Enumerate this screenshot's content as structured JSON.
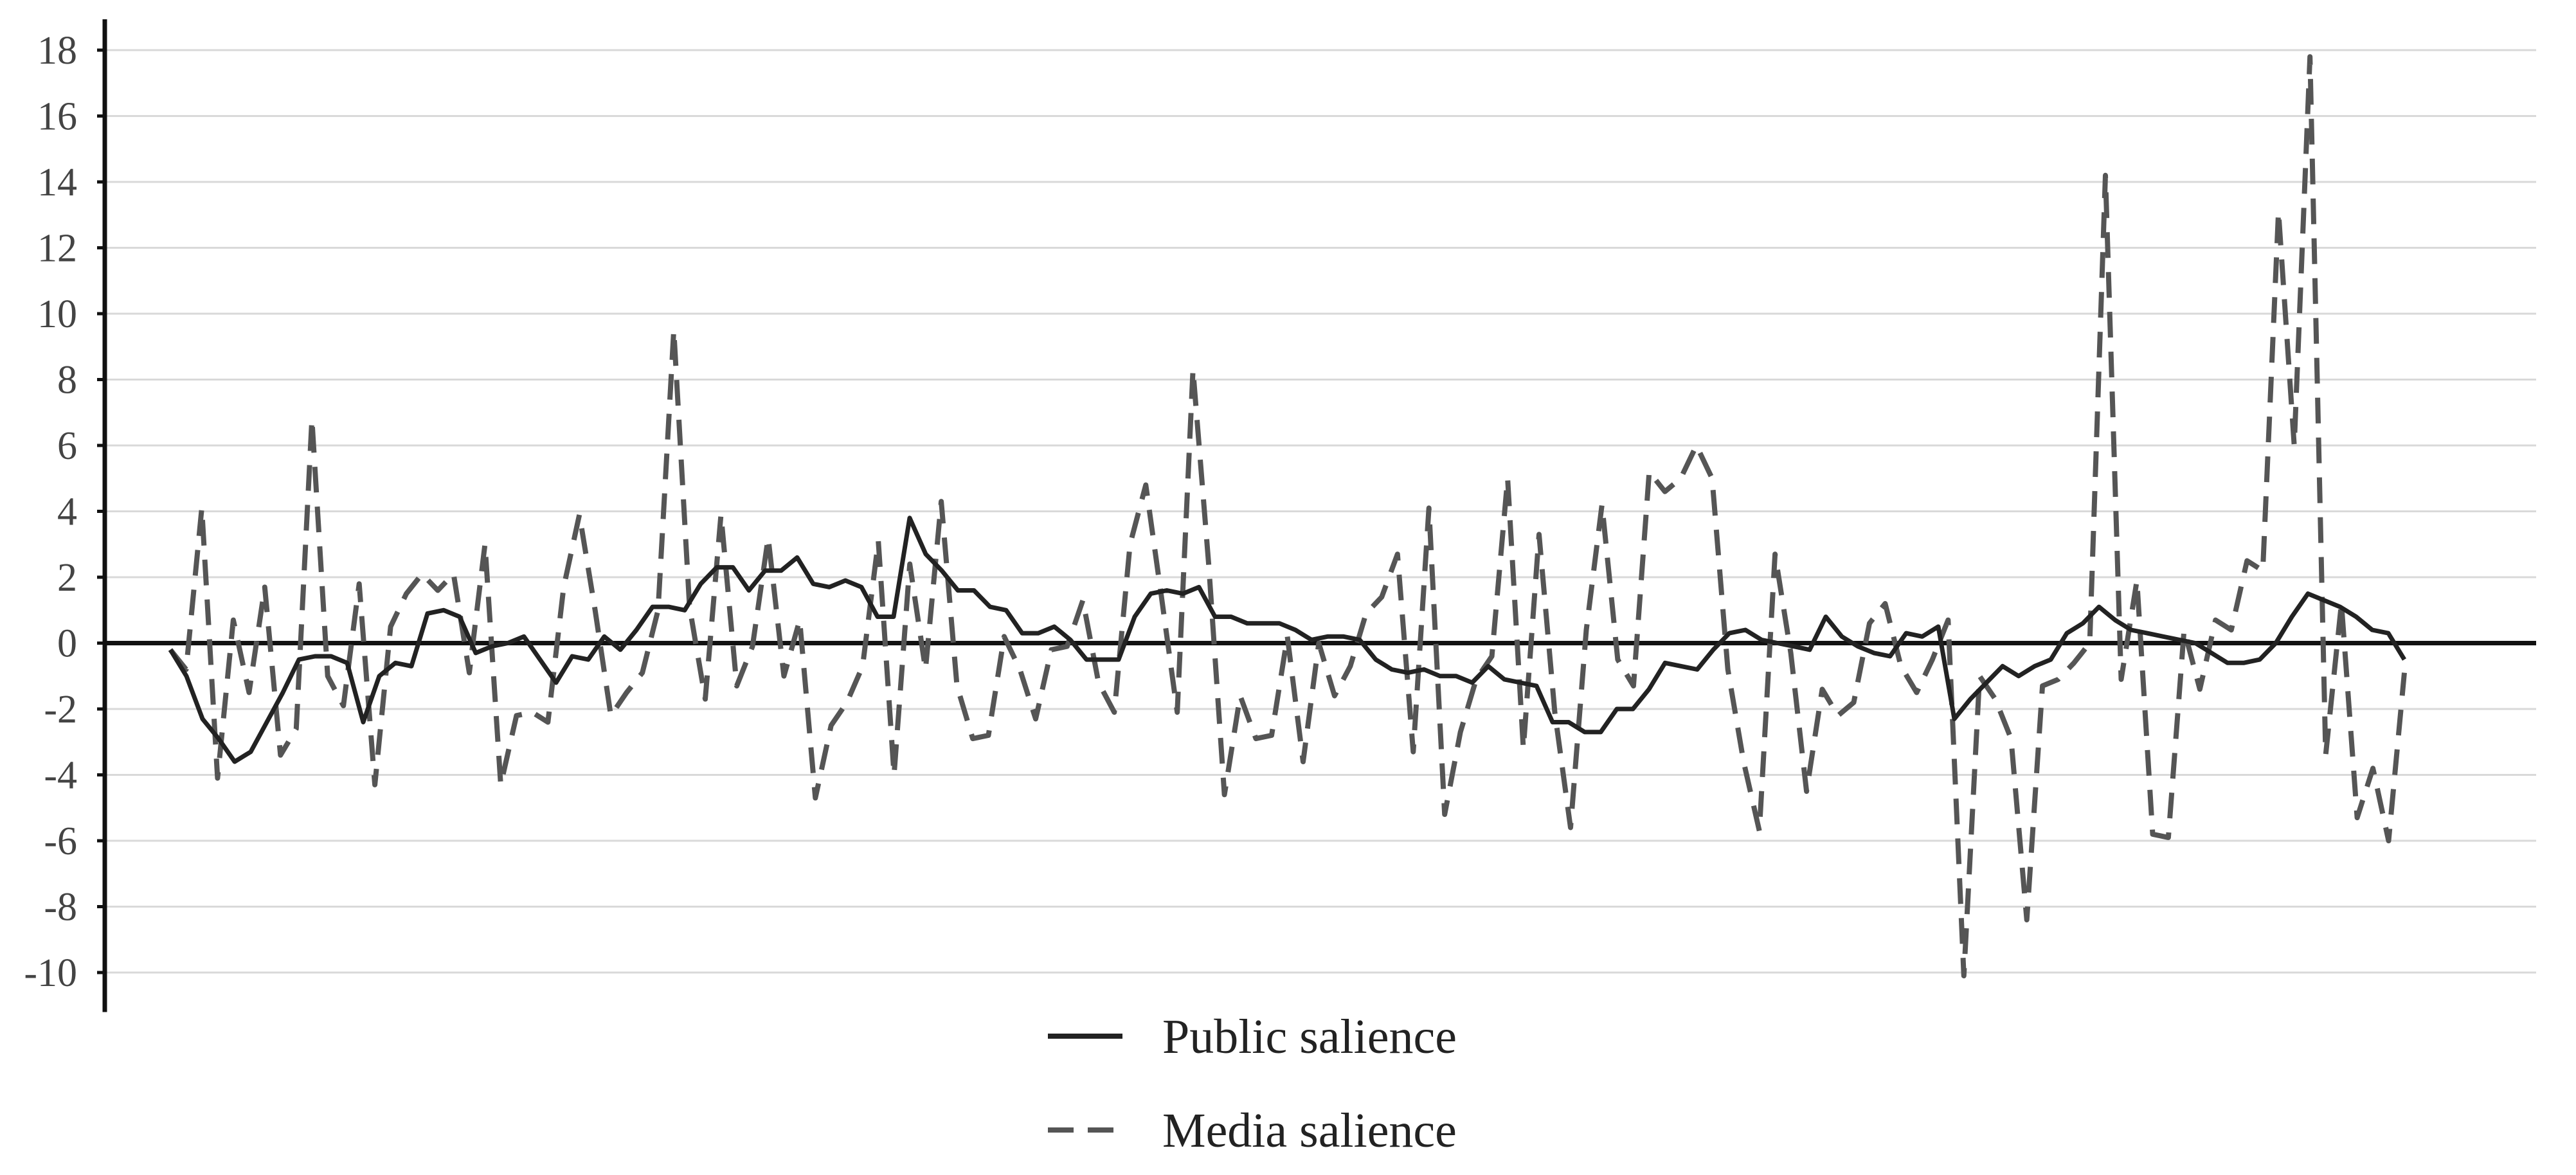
{
  "chart_data": {
    "type": "line",
    "title": "",
    "xlabel": "",
    "ylabel": "",
    "x_tick_labels": "none",
    "ylim": [
      -11,
      19
    ],
    "yticks": [
      18,
      16,
      14,
      12,
      10,
      8,
      6,
      4,
      2,
      0,
      -2,
      -4,
      -6,
      -8,
      -10
    ],
    "ytick_labels": [
      "18",
      "16",
      "14",
      "12",
      "10",
      "8",
      "6",
      "4",
      "2",
      "0",
      "-2",
      "-4",
      "-6",
      "-8",
      "-10"
    ],
    "grid": "horizontal",
    "zero_line": true,
    "legend_position": "bottom-center",
    "series": [
      {
        "name": "Public salience",
        "style": "solid",
        "color": "#222222",
        "values": [
          -0.2,
          -1.0,
          -2.3,
          -2.9,
          -3.6,
          -3.3,
          -2.4,
          -1.5,
          -0.5,
          -0.4,
          -0.4,
          -0.6,
          -2.4,
          -1.0,
          -0.6,
          -0.7,
          0.9,
          1.0,
          0.8,
          -0.3,
          -0.1,
          0.0,
          0.2,
          -0.5,
          -1.2,
          -0.4,
          -0.5,
          0.2,
          -0.2,
          0.4,
          1.1,
          1.1,
          1.0,
          1.8,
          2.3,
          2.3,
          1.6,
          2.2,
          2.2,
          2.6,
          1.8,
          1.7,
          1.9,
          1.7,
          0.8,
          0.8,
          3.8,
          2.7,
          2.2,
          1.6,
          1.6,
          1.1,
          1.0,
          0.3,
          0.3,
          0.5,
          0.1,
          -0.5,
          -0.5,
          -0.5,
          0.8,
          1.5,
          1.6,
          1.5,
          1.7,
          0.8,
          0.8,
          0.6,
          0.6,
          0.6,
          0.4,
          0.1,
          0.2,
          0.2,
          0.1,
          -0.5,
          -0.8,
          -0.9,
          -0.8,
          -1.0,
          -1.0,
          -1.2,
          -0.7,
          -1.1,
          -1.2,
          -1.3,
          -2.4,
          -2.4,
          -2.7,
          -2.7,
          -2.0,
          -2.0,
          -1.4,
          -0.6,
          -0.7,
          -0.8,
          -0.2,
          0.3,
          0.4,
          0.1,
          0.0,
          -0.1,
          -0.2,
          0.8,
          0.2,
          -0.1,
          -0.3,
          -0.4,
          0.3,
          0.2,
          0.5,
          -2.3,
          -1.7,
          -1.2,
          -0.7,
          -1.0,
          -0.7,
          -0.5,
          0.3,
          0.6,
          1.1,
          0.7,
          0.4,
          0.3,
          0.2,
          0.1,
          0.0,
          -0.3,
          -0.6,
          -0.6,
          -0.5,
          0.0,
          0.8,
          1.5,
          1.3,
          1.1,
          0.8,
          0.4,
          0.3,
          -0.5
        ]
      },
      {
        "name": "Media salience",
        "style": "dashed",
        "color": "#555555",
        "values": [
          -0.2,
          -0.8,
          4.1,
          -4.1,
          0.7,
          -1.5,
          1.7,
          -3.4,
          -2.6,
          6.8,
          -1.0,
          -1.9,
          1.8,
          -4.3,
          0.5,
          1.5,
          2.1,
          1.6,
          2.1,
          -0.9,
          3.0,
          -4.3,
          -2.2,
          -2.1,
          -2.4,
          1.7,
          3.9,
          1.0,
          -2.2,
          -1.5,
          -0.9,
          1.0,
          9.5,
          1.1,
          -1.7,
          3.9,
          -1.3,
          -0.1,
          3.2,
          -1.0,
          0.7,
          -4.7,
          -2.5,
          -1.8,
          -0.7,
          3.1,
          -4.0,
          2.4,
          -0.8,
          4.3,
          -1.3,
          -2.9,
          -2.8,
          0.2,
          -0.8,
          -2.3,
          -0.2,
          -0.1,
          1.3,
          -1.2,
          -2.1,
          3.0,
          4.8,
          1.4,
          -2.1,
          8.3,
          2.4,
          -4.6,
          -1.6,
          -2.9,
          -2.8,
          0.2,
          -3.6,
          0.0,
          -1.6,
          -0.7,
          0.9,
          1.4,
          2.7,
          -3.3,
          4.1,
          -5.2,
          -2.7,
          -1.1,
          -0.4,
          5.0,
          -3.2,
          3.3,
          -2.1,
          -5.6,
          0.4,
          4.2,
          -0.5,
          -1.3,
          5.2,
          4.6,
          5.0,
          6.0,
          5.0,
          -0.8,
          -3.6,
          -5.7,
          2.7,
          -0.3,
          -4.5,
          -1.4,
          -2.2,
          -1.8,
          0.6,
          1.2,
          -0.7,
          -1.5,
          -0.5,
          0.7,
          -10.1,
          -1.0,
          -1.7,
          -2.9,
          -8.4,
          -1.3,
          -1.1,
          -0.6,
          0.0,
          14.2,
          -1.1,
          1.9,
          -5.8,
          -5.9,
          0.4,
          -1.4,
          0.7,
          0.4,
          2.5,
          2.2,
          13.1,
          6.0,
          17.8,
          -3.4,
          1.2,
          -5.3,
          -3.8,
          -6.0,
          -0.9
        ]
      }
    ]
  }
}
